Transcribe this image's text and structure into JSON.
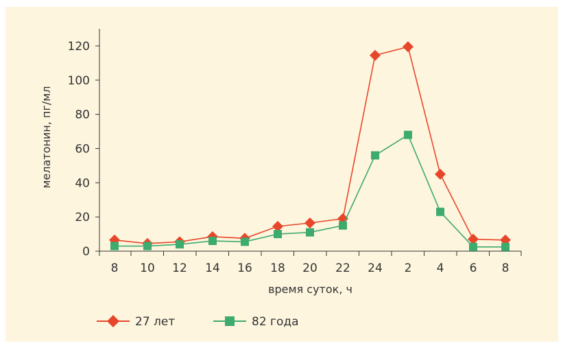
{
  "chart_data": {
    "type": "line",
    "categories": [
      "8",
      "10",
      "12",
      "14",
      "16",
      "18",
      "20",
      "22",
      "24",
      "2",
      "4",
      "6",
      "8"
    ],
    "series": [
      {
        "name": "27 лет",
        "color": "#e8462a",
        "marker": "diamond",
        "values": [
          6.5,
          4.5,
          5.5,
          8.5,
          7.5,
          14.5,
          16.5,
          19.0,
          114.5,
          119.5,
          45.0,
          7.0,
          6.5
        ]
      },
      {
        "name": "82 года",
        "color": "#3daa6e",
        "marker": "square",
        "values": [
          3.0,
          3.0,
          4.0,
          6.0,
          5.5,
          10.0,
          11.0,
          15.0,
          56.0,
          68.0,
          23.0,
          2.5,
          2.5
        ]
      }
    ],
    "title": "",
    "xlabel": "время суток, ч",
    "ylabel": "мелатонин, пг/мл",
    "ylim": [
      0,
      130
    ],
    "yticks": [
      0,
      20,
      40,
      60,
      80,
      100,
      120
    ],
    "grid": false,
    "legend": "bottom-left"
  },
  "colors": {
    "background": "#fdf5de",
    "axis": "#333333",
    "text": "#333333"
  }
}
